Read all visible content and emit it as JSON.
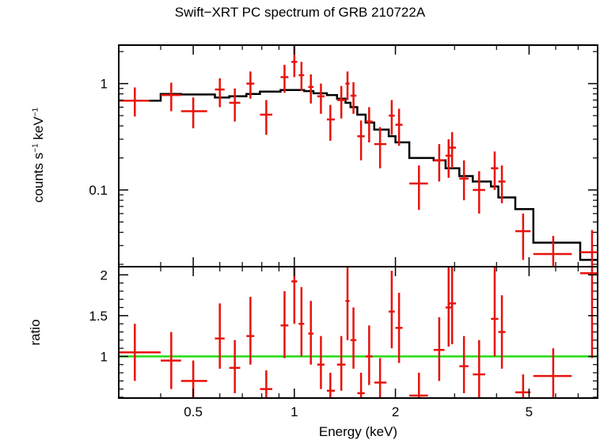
{
  "title": "Swift−XRT PC spectrum of GRB 210722A",
  "colors": {
    "data": "#e8120c",
    "model": "#000000",
    "ratio_line": "#22dd11",
    "axes": "#000000"
  },
  "chart_data": [
    {
      "type": "scatter",
      "panel": "spectrum",
      "ylabel_main": "counts s",
      "ylabel_sup1": "−1",
      "ylabel_mid": " keV",
      "ylabel_sup2": "−1",
      "yscale": "log",
      "xscale": "log",
      "xlim": [
        0.3,
        8.0
      ],
      "ylim": [
        0.019,
        2.3
      ],
      "y_tick_labels": [
        "1",
        "0.1"
      ],
      "y_ticks": [
        1,
        0.1
      ],
      "points": [
        {
          "x": 0.335,
          "xlo": 0.3,
          "xhi": 0.37,
          "y": 0.69,
          "ylo": 0.49,
          "yhi": 0.92
        },
        {
          "x": 0.43,
          "xlo": 0.4,
          "xhi": 0.46,
          "y": 0.78,
          "ylo": 0.55,
          "yhi": 1.02
        },
        {
          "x": 0.5,
          "xlo": 0.46,
          "xhi": 0.55,
          "y": 0.55,
          "ylo": 0.38,
          "yhi": 0.74
        },
        {
          "x": 0.6,
          "xlo": 0.58,
          "xhi": 0.62,
          "y": 0.88,
          "ylo": 0.6,
          "yhi": 1.12
        },
        {
          "x": 0.665,
          "xlo": 0.64,
          "xhi": 0.69,
          "y": 0.66,
          "ylo": 0.44,
          "yhi": 0.9
        },
        {
          "x": 0.74,
          "xlo": 0.72,
          "xhi": 0.76,
          "y": 1.0,
          "ylo": 0.72,
          "yhi": 1.3
        },
        {
          "x": 0.825,
          "xlo": 0.79,
          "xhi": 0.86,
          "y": 0.51,
          "ylo": 0.33,
          "yhi": 0.7
        },
        {
          "x": 0.935,
          "xlo": 0.91,
          "xhi": 0.96,
          "y": 1.15,
          "ylo": 0.82,
          "yhi": 1.5
        },
        {
          "x": 1.0,
          "xlo": 0.98,
          "xhi": 1.02,
          "y": 1.6,
          "ylo": 1.15,
          "yhi": 2.3
        },
        {
          "x": 1.05,
          "xlo": 1.03,
          "xhi": 1.07,
          "y": 1.2,
          "ylo": 0.85,
          "yhi": 1.6
        },
        {
          "x": 1.12,
          "xlo": 1.1,
          "xhi": 1.14,
          "y": 0.93,
          "ylo": 0.65,
          "yhi": 1.22
        },
        {
          "x": 1.2,
          "xlo": 1.17,
          "xhi": 1.23,
          "y": 0.76,
          "ylo": 0.52,
          "yhi": 1.0
        },
        {
          "x": 1.28,
          "xlo": 1.25,
          "xhi": 1.32,
          "y": 0.46,
          "ylo": 0.29,
          "yhi": 0.63
        },
        {
          "x": 1.38,
          "xlo": 1.34,
          "xhi": 1.42,
          "y": 0.7,
          "ylo": 0.47,
          "yhi": 0.95
        },
        {
          "x": 1.44,
          "xlo": 1.42,
          "xhi": 1.46,
          "y": 1.0,
          "ylo": 0.7,
          "yhi": 1.3
        },
        {
          "x": 1.5,
          "xlo": 1.47,
          "xhi": 1.53,
          "y": 0.77,
          "ylo": 0.52,
          "yhi": 1.03
        },
        {
          "x": 1.58,
          "xlo": 1.54,
          "xhi": 1.62,
          "y": 0.32,
          "ylo": 0.19,
          "yhi": 0.45
        },
        {
          "x": 1.67,
          "xlo": 1.63,
          "xhi": 1.71,
          "y": 0.44,
          "ylo": 0.28,
          "yhi": 0.6
        },
        {
          "x": 1.8,
          "xlo": 1.73,
          "xhi": 1.88,
          "y": 0.27,
          "ylo": 0.16,
          "yhi": 0.39
        },
        {
          "x": 1.95,
          "xlo": 1.91,
          "xhi": 1.99,
          "y": 0.5,
          "ylo": 0.33,
          "yhi": 0.7
        },
        {
          "x": 2.05,
          "xlo": 2.0,
          "xhi": 2.1,
          "y": 0.41,
          "ylo": 0.26,
          "yhi": 0.58
        },
        {
          "x": 2.35,
          "xlo": 2.2,
          "xhi": 2.5,
          "y": 0.115,
          "ylo": 0.065,
          "yhi": 0.17
        },
        {
          "x": 2.7,
          "xlo": 2.6,
          "xhi": 2.8,
          "y": 0.19,
          "ylo": 0.12,
          "yhi": 0.27
        },
        {
          "x": 2.95,
          "xlo": 2.87,
          "xhi": 3.03,
          "y": 0.25,
          "ylo": 0.16,
          "yhi": 0.35
        },
        {
          "x": 2.88,
          "xlo": 2.82,
          "xhi": 2.94,
          "y": 0.21,
          "ylo": 0.13,
          "yhi": 0.3
        },
        {
          "x": 3.2,
          "xlo": 3.1,
          "xhi": 3.3,
          "y": 0.128,
          "ylo": 0.08,
          "yhi": 0.19
        },
        {
          "x": 3.55,
          "xlo": 3.4,
          "xhi": 3.7,
          "y": 0.1,
          "ylo": 0.06,
          "yhi": 0.15
        },
        {
          "x": 3.95,
          "xlo": 3.85,
          "xhi": 4.05,
          "y": 0.16,
          "ylo": 0.1,
          "yhi": 0.23
        },
        {
          "x": 4.15,
          "xlo": 4.05,
          "xhi": 4.25,
          "y": 0.12,
          "ylo": 0.075,
          "yhi": 0.17
        },
        {
          "x": 4.8,
          "xlo": 4.55,
          "xhi": 5.05,
          "y": 0.041,
          "ylo": 0.022,
          "yhi": 0.06
        },
        {
          "x": 5.9,
          "xlo": 5.15,
          "xhi": 6.7,
          "y": 0.025,
          "ylo": 0.013,
          "yhi": 0.037
        },
        {
          "x": 7.7,
          "xlo": 7.1,
          "xhi": 8.0,
          "y": 0.026,
          "ylo": 0.013,
          "yhi": 0.042
        }
      ],
      "model_steps": [
        {
          "xlo": 0.3,
          "xhi": 0.4,
          "y": 0.69
        },
        {
          "xlo": 0.4,
          "xhi": 0.46,
          "y": 0.8
        },
        {
          "xlo": 0.46,
          "xhi": 0.58,
          "y": 0.79
        },
        {
          "xlo": 0.58,
          "xhi": 0.64,
          "y": 0.74
        },
        {
          "xlo": 0.64,
          "xhi": 0.72,
          "y": 0.76
        },
        {
          "xlo": 0.72,
          "xhi": 0.79,
          "y": 0.8
        },
        {
          "xlo": 0.79,
          "xhi": 0.91,
          "y": 0.84
        },
        {
          "xlo": 0.91,
          "xhi": 1.07,
          "y": 0.87
        },
        {
          "xlo": 1.07,
          "xhi": 1.14,
          "y": 0.85
        },
        {
          "xlo": 1.14,
          "xhi": 1.25,
          "y": 0.81
        },
        {
          "xlo": 1.25,
          "xhi": 1.34,
          "y": 0.78
        },
        {
          "xlo": 1.34,
          "xhi": 1.42,
          "y": 0.72
        },
        {
          "xlo": 1.42,
          "xhi": 1.47,
          "y": 0.66
        },
        {
          "xlo": 1.47,
          "xhi": 1.54,
          "y": 0.6
        },
        {
          "xlo": 1.54,
          "xhi": 1.63,
          "y": 0.51
        },
        {
          "xlo": 1.63,
          "xhi": 1.73,
          "y": 0.43
        },
        {
          "xlo": 1.73,
          "xhi": 1.91,
          "y": 0.37
        },
        {
          "xlo": 1.91,
          "xhi": 2.0,
          "y": 0.32
        },
        {
          "xlo": 2.0,
          "xhi": 2.2,
          "y": 0.28
        },
        {
          "xlo": 2.2,
          "xhi": 2.6,
          "y": 0.2
        },
        {
          "xlo": 2.6,
          "xhi": 2.82,
          "y": 0.19
        },
        {
          "xlo": 2.82,
          "xhi": 3.1,
          "y": 0.16
        },
        {
          "xlo": 3.1,
          "xhi": 3.4,
          "y": 0.135
        },
        {
          "xlo": 3.4,
          "xhi": 3.85,
          "y": 0.12
        },
        {
          "xlo": 3.85,
          "xhi": 4.05,
          "y": 0.108
        },
        {
          "xlo": 4.05,
          "xhi": 4.55,
          "y": 0.085
        },
        {
          "xlo": 4.55,
          "xhi": 5.15,
          "y": 0.066
        },
        {
          "xlo": 5.15,
          "xhi": 7.1,
          "y": 0.032
        },
        {
          "xlo": 7.1,
          "xhi": 8.0,
          "y": 0.022
        }
      ]
    },
    {
      "type": "scatter",
      "panel": "ratio",
      "ylabel": "ratio",
      "xlabel": "Energy (keV)",
      "xscale": "log",
      "xlim": [
        0.3,
        8.0
      ],
      "ylim": [
        0.49,
        2.1
      ],
      "y_tick_labels": [
        "2",
        "1.5",
        "1"
      ],
      "y_ticks": [
        2,
        1.5,
        1
      ],
      "x_tick_labels": [
        "0.5",
        "1",
        "2",
        "5"
      ],
      "x_ticks": [
        0.5,
        1,
        2,
        5
      ],
      "reference_line": 1,
      "points": [
        {
          "x": 0.335,
          "xlo": 0.3,
          "xhi": 0.4,
          "y": 1.05,
          "ylo": 0.7,
          "yhi": 1.4
        },
        {
          "x": 0.43,
          "xlo": 0.4,
          "xhi": 0.46,
          "y": 0.95,
          "ylo": 0.6,
          "yhi": 1.3
        },
        {
          "x": 0.5,
          "xlo": 0.46,
          "xhi": 0.55,
          "y": 0.7,
          "ylo": 0.49,
          "yhi": 0.95
        },
        {
          "x": 0.6,
          "xlo": 0.58,
          "xhi": 0.62,
          "y": 1.22,
          "ylo": 0.85,
          "yhi": 1.65
        },
        {
          "x": 0.665,
          "xlo": 0.64,
          "xhi": 0.69,
          "y": 0.86,
          "ylo": 0.55,
          "yhi": 1.2
        },
        {
          "x": 0.74,
          "xlo": 0.72,
          "xhi": 0.76,
          "y": 1.25,
          "ylo": 0.9,
          "yhi": 1.73
        },
        {
          "x": 0.825,
          "xlo": 0.79,
          "xhi": 0.86,
          "y": 0.6,
          "ylo": 0.49,
          "yhi": 0.83
        },
        {
          "x": 0.935,
          "xlo": 0.91,
          "xhi": 0.96,
          "y": 1.38,
          "ylo": 0.98,
          "yhi": 1.8
        },
        {
          "x": 1.0,
          "xlo": 0.98,
          "xhi": 1.02,
          "y": 1.92,
          "ylo": 1.4,
          "yhi": 2.1
        },
        {
          "x": 1.05,
          "xlo": 1.03,
          "xhi": 1.07,
          "y": 1.4,
          "ylo": 1.0,
          "yhi": 1.85
        },
        {
          "x": 1.12,
          "xlo": 1.1,
          "xhi": 1.14,
          "y": 1.28,
          "ylo": 0.9,
          "yhi": 1.68
        },
        {
          "x": 1.2,
          "xlo": 1.17,
          "xhi": 1.23,
          "y": 0.9,
          "ylo": 0.6,
          "yhi": 1.25
        },
        {
          "x": 1.28,
          "xlo": 1.25,
          "xhi": 1.32,
          "y": 0.58,
          "ylo": 0.49,
          "yhi": 0.8
        },
        {
          "x": 1.38,
          "xlo": 1.34,
          "xhi": 1.42,
          "y": 0.9,
          "ylo": 0.58,
          "yhi": 1.25
        },
        {
          "x": 1.44,
          "xlo": 1.42,
          "xhi": 1.46,
          "y": 1.68,
          "ylo": 1.2,
          "yhi": 2.1
        },
        {
          "x": 1.5,
          "xlo": 1.47,
          "xhi": 1.53,
          "y": 1.2,
          "ylo": 0.85,
          "yhi": 1.6
        },
        {
          "x": 1.58,
          "xlo": 1.54,
          "xhi": 1.62,
          "y": 0.55,
          "ylo": 0.49,
          "yhi": 0.8
        },
        {
          "x": 1.67,
          "xlo": 1.63,
          "xhi": 1.71,
          "y": 1.0,
          "ylo": 0.65,
          "yhi": 1.38
        },
        {
          "x": 1.8,
          "xlo": 1.73,
          "xhi": 1.88,
          "y": 0.68,
          "ylo": 0.49,
          "yhi": 0.98
        },
        {
          "x": 1.95,
          "xlo": 1.91,
          "xhi": 1.99,
          "y": 1.55,
          "ylo": 1.1,
          "yhi": 2.05
        },
        {
          "x": 2.05,
          "xlo": 2.0,
          "xhi": 2.1,
          "y": 1.35,
          "ylo": 0.92,
          "yhi": 1.78
        },
        {
          "x": 2.35,
          "xlo": 2.2,
          "xhi": 2.5,
          "y": 0.52,
          "ylo": 0.49,
          "yhi": 0.8
        },
        {
          "x": 2.7,
          "xlo": 2.6,
          "xhi": 2.8,
          "y": 1.08,
          "ylo": 0.7,
          "yhi": 1.48
        },
        {
          "x": 2.88,
          "xlo": 2.82,
          "xhi": 2.94,
          "y": 1.6,
          "ylo": 1.12,
          "yhi": 2.1
        },
        {
          "x": 2.95,
          "xlo": 2.87,
          "xhi": 3.03,
          "y": 1.65,
          "ylo": 1.15,
          "yhi": 2.1
        },
        {
          "x": 3.2,
          "xlo": 3.1,
          "xhi": 3.3,
          "y": 0.88,
          "ylo": 0.55,
          "yhi": 1.25
        },
        {
          "x": 3.55,
          "xlo": 3.4,
          "xhi": 3.7,
          "y": 0.78,
          "ylo": 0.49,
          "yhi": 1.2
        },
        {
          "x": 3.95,
          "xlo": 3.85,
          "xhi": 4.05,
          "y": 1.46,
          "ylo": 1.0,
          "yhi": 2.1
        },
        {
          "x": 4.15,
          "xlo": 4.05,
          "xhi": 4.25,
          "y": 1.3,
          "ylo": 0.85,
          "yhi": 1.75
        },
        {
          "x": 4.8,
          "xlo": 4.55,
          "xhi": 5.05,
          "y": 0.56,
          "ylo": 0.49,
          "yhi": 0.78
        },
        {
          "x": 5.9,
          "xlo": 5.15,
          "xhi": 6.7,
          "y": 0.76,
          "ylo": 0.49,
          "yhi": 1.1
        },
        {
          "x": 7.7,
          "xlo": 7.1,
          "xhi": 8.0,
          "y": 2.02,
          "ylo": 0.98,
          "yhi": 2.1
        }
      ]
    }
  ]
}
